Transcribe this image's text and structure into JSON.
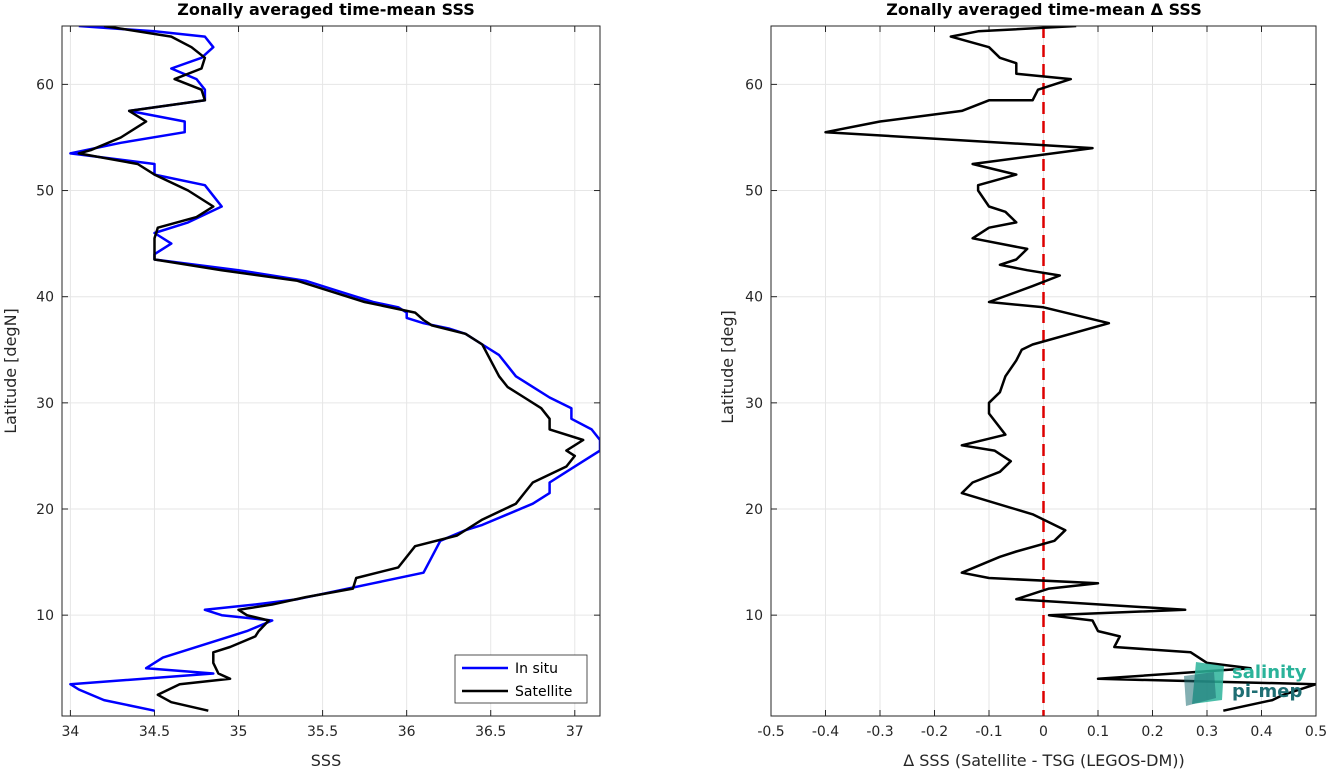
{
  "chart_data": [
    {
      "type": "line",
      "title": "Zonally averaged time-mean SSS",
      "xlabel": "SSS",
      "ylabel": "Latitude [degN]",
      "xlim": [
        33.95,
        37.15
      ],
      "ylim": [
        0.5,
        65.5
      ],
      "xticks": [
        "34",
        "34.5",
        "35",
        "35.5",
        "36",
        "36.5",
        "37"
      ],
      "yticks": [
        "10",
        "20",
        "30",
        "40",
        "50",
        "60"
      ],
      "grid": true,
      "legend": "bottom-right",
      "series": [
        {
          "name": "In situ",
          "color": "#0000ff",
          "points": [
            [
              34.5,
              1
            ],
            [
              34.2,
              2
            ],
            [
              34.05,
              3
            ],
            [
              34.0,
              3.5
            ],
            [
              34.85,
              4.5
            ],
            [
              34.45,
              5
            ],
            [
              34.55,
              6
            ],
            [
              34.85,
              7.5
            ],
            [
              35.05,
              8.5
            ],
            [
              35.2,
              9.5
            ],
            [
              34.9,
              10
            ],
            [
              34.8,
              10.5
            ],
            [
              35.1,
              11
            ],
            [
              35.35,
              11.5
            ],
            [
              35.65,
              12.5
            ],
            [
              35.8,
              13
            ],
            [
              36.1,
              14
            ],
            [
              36.15,
              15.5
            ],
            [
              36.2,
              17
            ],
            [
              36.35,
              18
            ],
            [
              36.45,
              18.5
            ],
            [
              36.6,
              19.5
            ],
            [
              36.75,
              20.5
            ],
            [
              36.85,
              21.5
            ],
            [
              36.85,
              22.5
            ],
            [
              36.95,
              23.5
            ],
            [
              37.05,
              24.5
            ],
            [
              37.15,
              25.5
            ],
            [
              37.15,
              26.5
            ],
            [
              37.1,
              27.5
            ],
            [
              36.98,
              28.5
            ],
            [
              36.98,
              29.5
            ],
            [
              36.85,
              30.5
            ],
            [
              36.75,
              31.5
            ],
            [
              36.65,
              32.5
            ],
            [
              36.6,
              33.5
            ],
            [
              36.55,
              34.5
            ],
            [
              36.45,
              35.5
            ],
            [
              36.35,
              36.5
            ],
            [
              36.25,
              37
            ],
            [
              36.1,
              37.5
            ],
            [
              36.0,
              38
            ],
            [
              36.0,
              38.5
            ],
            [
              35.95,
              39
            ],
            [
              35.8,
              39.5
            ],
            [
              35.6,
              40.5
            ],
            [
              35.4,
              41.5
            ],
            [
              35.0,
              42.5
            ],
            [
              34.5,
              43.5
            ],
            [
              34.5,
              44
            ],
            [
              34.6,
              45
            ],
            [
              34.5,
              46
            ],
            [
              34.7,
              47
            ],
            [
              34.9,
              48.5
            ],
            [
              34.85,
              49.5
            ],
            [
              34.8,
              50.5
            ],
            [
              34.5,
              51.5
            ],
            [
              34.5,
              52.5
            ],
            [
              34.0,
              53.5
            ],
            [
              34.3,
              54.5
            ],
            [
              34.68,
              55.5
            ],
            [
              34.68,
              56.5
            ],
            [
              34.35,
              57.5
            ],
            [
              34.8,
              58.5
            ],
            [
              34.8,
              59.5
            ],
            [
              34.75,
              60.5
            ],
            [
              34.6,
              61.5
            ],
            [
              34.78,
              62.5
            ],
            [
              34.85,
              63.5
            ],
            [
              34.8,
              64.5
            ],
            [
              34.5,
              65.0
            ],
            [
              34.05,
              65.5
            ]
          ]
        },
        {
          "name": "Satellite",
          "color": "#000000",
          "points": [
            [
              34.82,
              1
            ],
            [
              34.6,
              1.8
            ],
            [
              34.52,
              2.5
            ],
            [
              34.65,
              3.5
            ],
            [
              34.95,
              4
            ],
            [
              34.88,
              4.5
            ],
            [
              34.85,
              5.5
            ],
            [
              34.85,
              6.5
            ],
            [
              34.95,
              7
            ],
            [
              35.1,
              8
            ],
            [
              35.12,
              8.5
            ],
            [
              35.18,
              9.5
            ],
            [
              35.05,
              10.0
            ],
            [
              35.0,
              10.5
            ],
            [
              35.2,
              11
            ],
            [
              35.4,
              11.7
            ],
            [
              35.68,
              12.5
            ],
            [
              35.7,
              13.5
            ],
            [
              35.95,
              14.5
            ],
            [
              36.05,
              16.5
            ],
            [
              36.3,
              17.5
            ],
            [
              36.45,
              19
            ],
            [
              36.65,
              20.5
            ],
            [
              36.7,
              21.5
            ],
            [
              36.75,
              22.5
            ],
            [
              36.95,
              24
            ],
            [
              37.0,
              25
            ],
            [
              36.95,
              25.5
            ],
            [
              37.05,
              26.5
            ],
            [
              36.85,
              27.5
            ],
            [
              36.85,
              28.5
            ],
            [
              36.8,
              29.5
            ],
            [
              36.7,
              30.5
            ],
            [
              36.6,
              31.5
            ],
            [
              36.55,
              32.5
            ],
            [
              36.5,
              34
            ],
            [
              36.45,
              35.5
            ],
            [
              36.35,
              36.5
            ],
            [
              36.15,
              37.3
            ],
            [
              36.1,
              37.8
            ],
            [
              36.05,
              38.5
            ],
            [
              35.75,
              39.5
            ],
            [
              35.55,
              40.5
            ],
            [
              35.35,
              41.5
            ],
            [
              34.9,
              42.5
            ],
            [
              34.5,
              43.5
            ],
            [
              34.5,
              44
            ],
            [
              34.5,
              45.5
            ],
            [
              34.52,
              46.5
            ],
            [
              34.75,
              47.5
            ],
            [
              34.85,
              48.5
            ],
            [
              34.7,
              50
            ],
            [
              34.5,
              51.5
            ],
            [
              34.4,
              52.5
            ],
            [
              34.05,
              53.5
            ],
            [
              34.12,
              53.8
            ],
            [
              34.3,
              55
            ],
            [
              34.45,
              56.5
            ],
            [
              34.35,
              57.5
            ],
            [
              34.8,
              58.5
            ],
            [
              34.78,
              59.5
            ],
            [
              34.62,
              60.5
            ],
            [
              34.78,
              61.5
            ],
            [
              34.8,
              62.5
            ],
            [
              34.72,
              63.5
            ],
            [
              34.6,
              64.5
            ],
            [
              34.2,
              65.5
            ]
          ]
        }
      ]
    },
    {
      "type": "line",
      "title": "Zonally averaged time-mean Δ SSS",
      "xlabel": "Δ SSS (Satellite - TSG (LEGOS-DM))",
      "ylabel": "Latitude [deg]",
      "xlim": [
        -0.5,
        0.5
      ],
      "ylim": [
        0.5,
        65.5
      ],
      "xticks": [
        "-0.5",
        "-0.4",
        "-0.3",
        "-0.2",
        "-0.1",
        "0",
        "0.1",
        "0.2",
        "0.3",
        "0.4",
        "0.5"
      ],
      "yticks": [
        "10",
        "20",
        "30",
        "40",
        "50",
        "60"
      ],
      "grid": true,
      "zero_line_color": "#dd0000",
      "series": [
        {
          "color": "#000000",
          "points": [
            [
              0.33,
              1
            ],
            [
              0.42,
              2
            ],
            [
              0.44,
              2.5
            ],
            [
              0.5,
              3.5
            ],
            [
              0.1,
              4
            ],
            [
              0.38,
              5
            ],
            [
              0.3,
              5.5
            ],
            [
              0.27,
              6.5
            ],
            [
              0.13,
              7
            ],
            [
              0.14,
              8
            ],
            [
              0.1,
              8.5
            ],
            [
              0.09,
              9.5
            ],
            [
              0.01,
              10
            ],
            [
              0.26,
              10.5
            ],
            [
              -0.05,
              11.5
            ],
            [
              0.01,
              12.5
            ],
            [
              0.1,
              13
            ],
            [
              -0.1,
              13.5
            ],
            [
              -0.15,
              14
            ],
            [
              -0.08,
              15.5
            ],
            [
              -0.05,
              16
            ],
            [
              0.02,
              17
            ],
            [
              0.04,
              18
            ],
            [
              -0.02,
              19.5
            ],
            [
              -0.15,
              21.5
            ],
            [
              -0.13,
              22.5
            ],
            [
              -0.08,
              23.5
            ],
            [
              -0.06,
              24.5
            ],
            [
              -0.09,
              25.5
            ],
            [
              -0.15,
              26
            ],
            [
              -0.07,
              27
            ],
            [
              -0.1,
              29
            ],
            [
              -0.1,
              30
            ],
            [
              -0.08,
              31
            ],
            [
              -0.07,
              32.5
            ],
            [
              -0.05,
              34
            ],
            [
              -0.04,
              35
            ],
            [
              -0.02,
              35.5
            ],
            [
              0.12,
              37.5
            ],
            [
              0.0,
              39
            ],
            [
              -0.1,
              39.5
            ],
            [
              -0.02,
              41
            ],
            [
              0.03,
              42
            ],
            [
              -0.03,
              42.5
            ],
            [
              -0.08,
              43
            ],
            [
              -0.05,
              43.5
            ],
            [
              -0.03,
              44.5
            ],
            [
              -0.13,
              45.5
            ],
            [
              -0.1,
              46.5
            ],
            [
              -0.05,
              47
            ],
            [
              -0.07,
              48
            ],
            [
              -0.1,
              48.5
            ],
            [
              -0.12,
              50
            ],
            [
              -0.12,
              50.5
            ],
            [
              -0.05,
              51.5
            ],
            [
              -0.13,
              52.5
            ],
            [
              0.09,
              54
            ],
            [
              -0.4,
              55.5
            ],
            [
              -0.3,
              56.5
            ],
            [
              -0.15,
              57.5
            ],
            [
              -0.1,
              58.5
            ],
            [
              -0.02,
              58.5
            ],
            [
              -0.01,
              59.5
            ],
            [
              0.05,
              60.5
            ],
            [
              -0.05,
              61
            ],
            [
              -0.05,
              62
            ],
            [
              -0.08,
              62.5
            ],
            [
              -0.1,
              63.5
            ],
            [
              -0.17,
              64.5
            ],
            [
              -0.12,
              65
            ],
            [
              0.06,
              65.5
            ]
          ]
        }
      ]
    }
  ],
  "logo": {
    "line1": "salinity",
    "line2": "pi-mep",
    "color1": "#2bb39a",
    "color2": "#1e6e73"
  }
}
